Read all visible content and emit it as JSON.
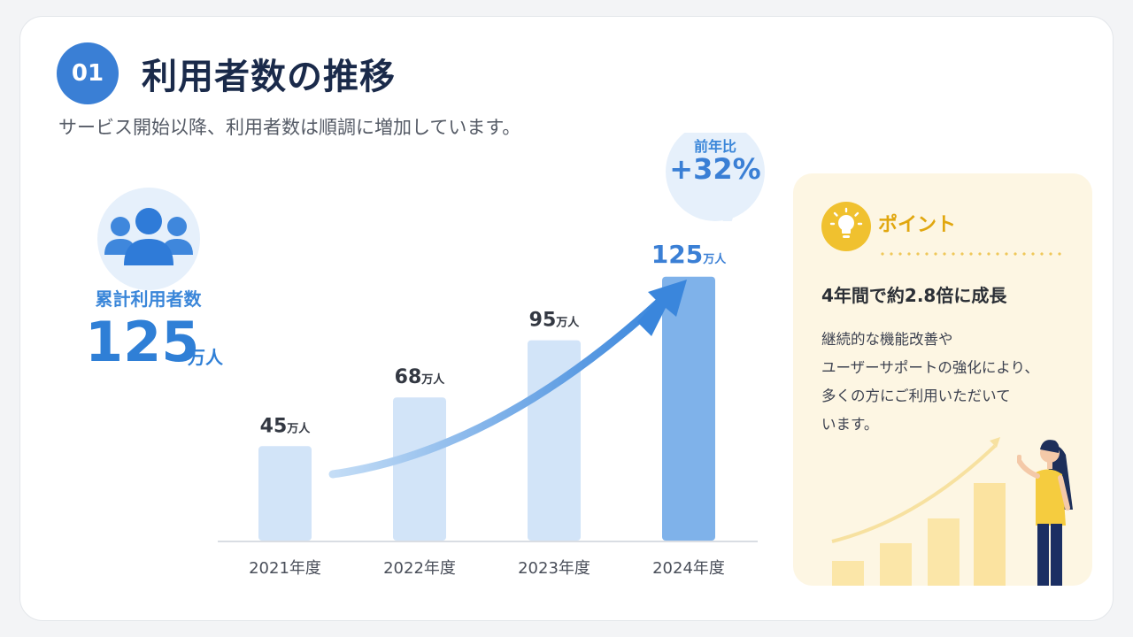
{
  "header": {
    "number": "01",
    "title": "利用者数の推移",
    "subtitle": "サービス開始以降、利用者数は順調に増加しています。"
  },
  "summary": {
    "icon": "users-icon",
    "label": "累計利用者数",
    "value": "125",
    "unit": "万人"
  },
  "growth_bubble": {
    "label": "前年比",
    "value": "+32%"
  },
  "chart_data": {
    "type": "bar",
    "categories": [
      "2021年度",
      "2022年度",
      "2023年度",
      "2024年度"
    ],
    "values": [
      45,
      68,
      95,
      125
    ],
    "value_labels": [
      "45",
      "68",
      "95",
      "125"
    ],
    "unit": "万人",
    "title": "",
    "xlabel": "",
    "ylabel": "",
    "ylim": [
      0,
      135
    ],
    "grid": false,
    "legend": "none",
    "trend_arrow": true
  },
  "point": {
    "icon": "lightbulb-icon",
    "title": "ポイント",
    "heading": "4年間で約2.8倍に成長",
    "body": [
      "継続的な機能改善や",
      "ユーザーサポートの強化により、",
      "多くの方にご利用いただいて",
      "います。"
    ]
  },
  "colors": {
    "primary": "#3a7fd5",
    "bar_light": "#d2e4f8",
    "bar_highlight": "#7fb2ea",
    "accent": "#f0c12f",
    "title_dark": "#1a2a4a",
    "card_bg": "#fdf6e3"
  }
}
